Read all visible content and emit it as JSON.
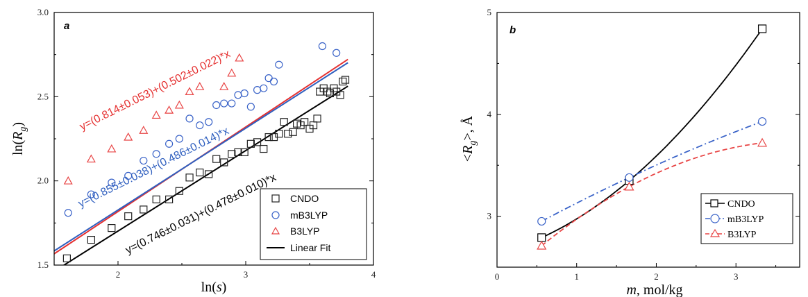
{
  "chart_data": [
    {
      "type": "scatter",
      "panel_label": "a",
      "xlabel_base": "ln(",
      "xlabel_var": "s",
      "xlabel_end": ")",
      "ylabel_base": "ln(",
      "ylabel_var": "R",
      "ylabel_sub": "g",
      "ylabel_end": ")",
      "xlim": [
        1.5,
        4.0
      ],
      "ylim": [
        1.5,
        3.0
      ],
      "xticks": [
        "2",
        "3",
        "4"
      ],
      "xtick_values": [
        2,
        3,
        4
      ],
      "yticks": [
        "1.5",
        "2.0",
        "2.5",
        "3.0"
      ],
      "ytick_values": [
        1.5,
        2.0,
        2.5,
        3.0
      ],
      "legend_position": "bottom-right",
      "series": [
        {
          "name": "CNDO",
          "marker": "square",
          "color": "#222222",
          "x": [
            1.6,
            1.79,
            1.95,
            2.08,
            2.2,
            2.3,
            2.4,
            2.48,
            2.56,
            2.64,
            2.71,
            2.77,
            2.83,
            2.89,
            2.94,
            2.99,
            3.04,
            3.09,
            3.14,
            3.18,
            3.22,
            3.26,
            3.3,
            3.33,
            3.37,
            3.4,
            3.43,
            3.46,
            3.5,
            3.53,
            3.56,
            3.58,
            3.61,
            3.64,
            3.66,
            3.69,
            3.71,
            3.74,
            3.76,
            3.78
          ],
          "y": [
            1.54,
            1.65,
            1.72,
            1.79,
            1.83,
            1.89,
            1.89,
            1.94,
            2.02,
            2.05,
            2.04,
            2.13,
            2.11,
            2.16,
            2.17,
            2.17,
            2.22,
            2.23,
            2.19,
            2.26,
            2.26,
            2.28,
            2.35,
            2.28,
            2.29,
            2.34,
            2.33,
            2.35,
            2.31,
            2.33,
            2.37,
            2.53,
            2.55,
            2.53,
            2.52,
            2.55,
            2.53,
            2.51,
            2.59,
            2.6
          ]
        },
        {
          "name": "mB3LYP",
          "marker": "circle",
          "color": "#3a63c8",
          "x": [
            1.61,
            1.79,
            1.95,
            2.08,
            2.2,
            2.3,
            2.4,
            2.48,
            2.56,
            2.64,
            2.71,
            2.77,
            2.83,
            2.89,
            2.94,
            2.99,
            3.04,
            3.09,
            3.14,
            3.18,
            3.22,
            3.26,
            3.6,
            3.71
          ],
          "y": [
            1.81,
            1.92,
            1.99,
            2.03,
            2.12,
            2.16,
            2.22,
            2.25,
            2.37,
            2.33,
            2.35,
            2.45,
            2.46,
            2.46,
            2.51,
            2.52,
            2.44,
            2.54,
            2.55,
            2.61,
            2.59,
            2.69,
            2.8,
            2.76
          ]
        },
        {
          "name": "B3LYP",
          "marker": "triangle",
          "color": "#e84545",
          "x": [
            1.61,
            1.79,
            1.95,
            2.08,
            2.2,
            2.3,
            2.4,
            2.48,
            2.56,
            2.64,
            2.83,
            2.89,
            2.95
          ],
          "y": [
            2.0,
            2.13,
            2.19,
            2.26,
            2.3,
            2.39,
            2.42,
            2.45,
            2.53,
            2.56,
            2.56,
            2.64,
            2.73
          ]
        }
      ],
      "fits": [
        {
          "name": "Linear Fit",
          "color": "#e53030",
          "intercept": 0.814,
          "slope": 0.502,
          "label": "y=(0.814±0.053)+(0.502±0.022)*x"
        },
        {
          "name": "Linear Fit",
          "color": "#2f5fbf",
          "intercept": 0.855,
          "slope": 0.486,
          "label": "y=(0.855±0.038)+(0.486±0.014)*x"
        },
        {
          "name": "Linear Fit",
          "color": "#000000",
          "intercept": 0.746,
          "slope": 0.478,
          "label": "y=(0.746±0.031)+(0.478±0.010)*x"
        }
      ],
      "legend": [
        "CNDO",
        "mB3LYP",
        "B3LYP",
        "Linear Fit"
      ]
    },
    {
      "type": "line",
      "panel_label": "b",
      "xlabel_var": "m",
      "xlabel_end": ", mol/kg",
      "ylabel_open": "<",
      "ylabel_var": "R",
      "ylabel_sub": "g",
      "ylabel_close": ">, Å",
      "xlim": [
        0,
        3.8
      ],
      "ylim": [
        2.5,
        5.0
      ],
      "xticks": [
        "0",
        "1",
        "2",
        "3"
      ],
      "xtick_values": [
        0,
        1,
        2,
        3
      ],
      "yticks": [
        "3",
        "4",
        "5"
      ],
      "ytick_values": [
        3,
        4,
        5
      ],
      "legend_position": "bottom-right",
      "series": [
        {
          "name": "CNDO",
          "marker": "square",
          "color": "#000000",
          "dash": "solid",
          "x": [
            0.56,
            1.66,
            3.33
          ],
          "y": [
            2.79,
            3.35,
            4.84
          ]
        },
        {
          "name": "mB3LYP",
          "marker": "circle",
          "color": "#3a63c8",
          "dash": "dashdot",
          "x": [
            0.56,
            1.66,
            3.33
          ],
          "y": [
            2.95,
            3.38,
            3.93
          ]
        },
        {
          "name": "B3LYP",
          "marker": "triangle",
          "color": "#e84545",
          "dash": "dashed",
          "x": [
            0.56,
            1.66,
            3.33
          ],
          "y": [
            2.71,
            3.29,
            3.72
          ]
        }
      ],
      "legend": [
        "CNDO",
        "mB3LYP",
        "B3LYP"
      ]
    }
  ]
}
